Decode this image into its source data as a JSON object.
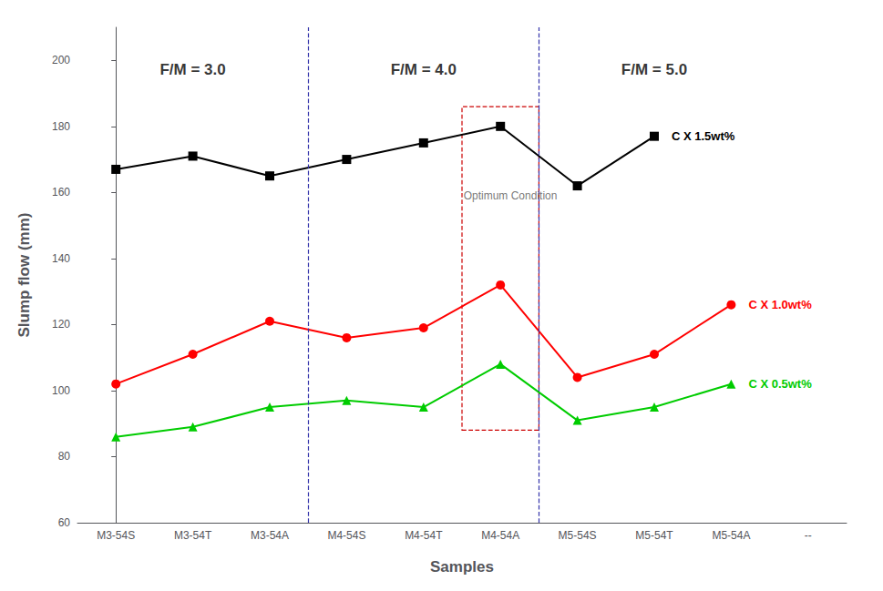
{
  "chart_data": {
    "type": "line",
    "categories": [
      "M3-54S",
      "M3-54T",
      "M3-54A",
      "M4-54S",
      "M4-54T",
      "M4-54A",
      "M5-54S",
      "M5-54T",
      "M5-54A",
      "--"
    ],
    "series": [
      {
        "name": "C X 1.5wt%",
        "color": "#000000",
        "marker": "square",
        "values": [
          167,
          171,
          165,
          170,
          175,
          180,
          162,
          177,
          null,
          null
        ]
      },
      {
        "name": "C X 1.0wt%",
        "color": "#ff0000",
        "marker": "circle",
        "values": [
          102,
          111,
          121,
          116,
          119,
          132,
          104,
          111,
          126,
          null
        ]
      },
      {
        "name": "C X 0.5wt%",
        "color": "#00cc00",
        "marker": "triangle",
        "values": [
          86,
          89,
          95,
          97,
          95,
          108,
          91,
          95,
          102,
          null
        ]
      }
    ],
    "xlabel": "Samples",
    "ylabel": "Slump flow (mm)",
    "ylim": [
      60,
      210
    ],
    "yticks": [
      60,
      80,
      100,
      120,
      140,
      160,
      180,
      200
    ],
    "grid": false,
    "annotations": [
      {
        "text": "F/M = 3.0",
        "x": 1.0,
        "y": 200
      },
      {
        "text": "F/M = 4.0",
        "x": 4.0,
        "y": 200
      },
      {
        "text": "F/M = 5.0",
        "x": 7.0,
        "y": 200
      }
    ],
    "vlines": [
      2.5,
      5.5
    ],
    "optimum_box": {
      "x0": 4.5,
      "x1": 5.5,
      "y0": 88,
      "y1": 186,
      "label": "Optimum Condition",
      "label_x": 4.52,
      "label_y": 159
    }
  }
}
